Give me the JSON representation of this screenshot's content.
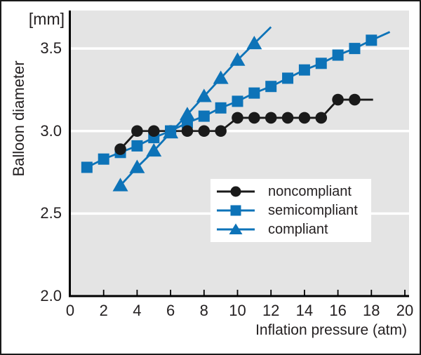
{
  "figure": {
    "y_unit_label": "[mm]",
    "y_axis_title": "Balloon diameter",
    "x_axis_title": "Inflation pressure (atm)"
  },
  "colors": {
    "accent_blue": "#0d73b8",
    "series_black": "#1a1a1a",
    "plot_bg": "#e4e4e4",
    "grid_white": "#ffffff",
    "axis": "#000000",
    "text": "#231f20"
  },
  "chart_data": {
    "type": "line",
    "title": "",
    "xlabel": "Inflation pressure (atm)",
    "ylabel": "Balloon diameter [mm]",
    "xlim": [
      0,
      20
    ],
    "ylim": [
      2.0,
      3.73
    ],
    "x_ticks": [
      0,
      2,
      4,
      6,
      8,
      10,
      12,
      14,
      16,
      18,
      20
    ],
    "y_ticks": [
      3.5,
      3.0,
      2.5,
      2.0
    ],
    "y_gridlines": [
      2.5,
      3.0,
      3.5
    ],
    "grid": "horizontal white gridlines on gray panel",
    "legend_position": "inside lower-right",
    "series": [
      {
        "name": "noncompliant",
        "marker": "circle",
        "color": "#1a1a1a",
        "x": [
          3,
          4,
          5,
          6,
          7,
          8,
          9,
          10,
          11,
          12,
          13,
          14,
          15,
          16,
          17
        ],
        "y": [
          2.89,
          3.0,
          3.0,
          3.0,
          3.0,
          3.0,
          3.0,
          3.08,
          3.08,
          3.08,
          3.08,
          3.08,
          3.08,
          3.19,
          3.19
        ],
        "line_extension": {
          "x": 18.1,
          "y": 3.19
        }
      },
      {
        "name": "semicompliant",
        "marker": "square",
        "color": "#0d73b8",
        "x": [
          1,
          2,
          3,
          4,
          5,
          6,
          7,
          8,
          9,
          10,
          11,
          12,
          13,
          14,
          15,
          16,
          17,
          18
        ],
        "y": [
          2.78,
          2.83,
          2.87,
          2.91,
          2.96,
          3.0,
          3.05,
          3.09,
          3.14,
          3.18,
          3.23,
          3.27,
          3.32,
          3.37,
          3.41,
          3.46,
          3.5,
          3.55
        ],
        "line_extension": {
          "x": 19.1,
          "y": 3.6
        }
      },
      {
        "name": "compliant",
        "marker": "triangle",
        "color": "#0d73b8",
        "x": [
          3,
          4,
          5,
          6,
          7,
          8,
          9,
          10,
          11
        ],
        "y": [
          2.67,
          2.78,
          2.88,
          2.99,
          3.1,
          3.21,
          3.32,
          3.43,
          3.53
        ],
        "line_extension": {
          "x": 12.0,
          "y": 3.63
        }
      }
    ]
  }
}
